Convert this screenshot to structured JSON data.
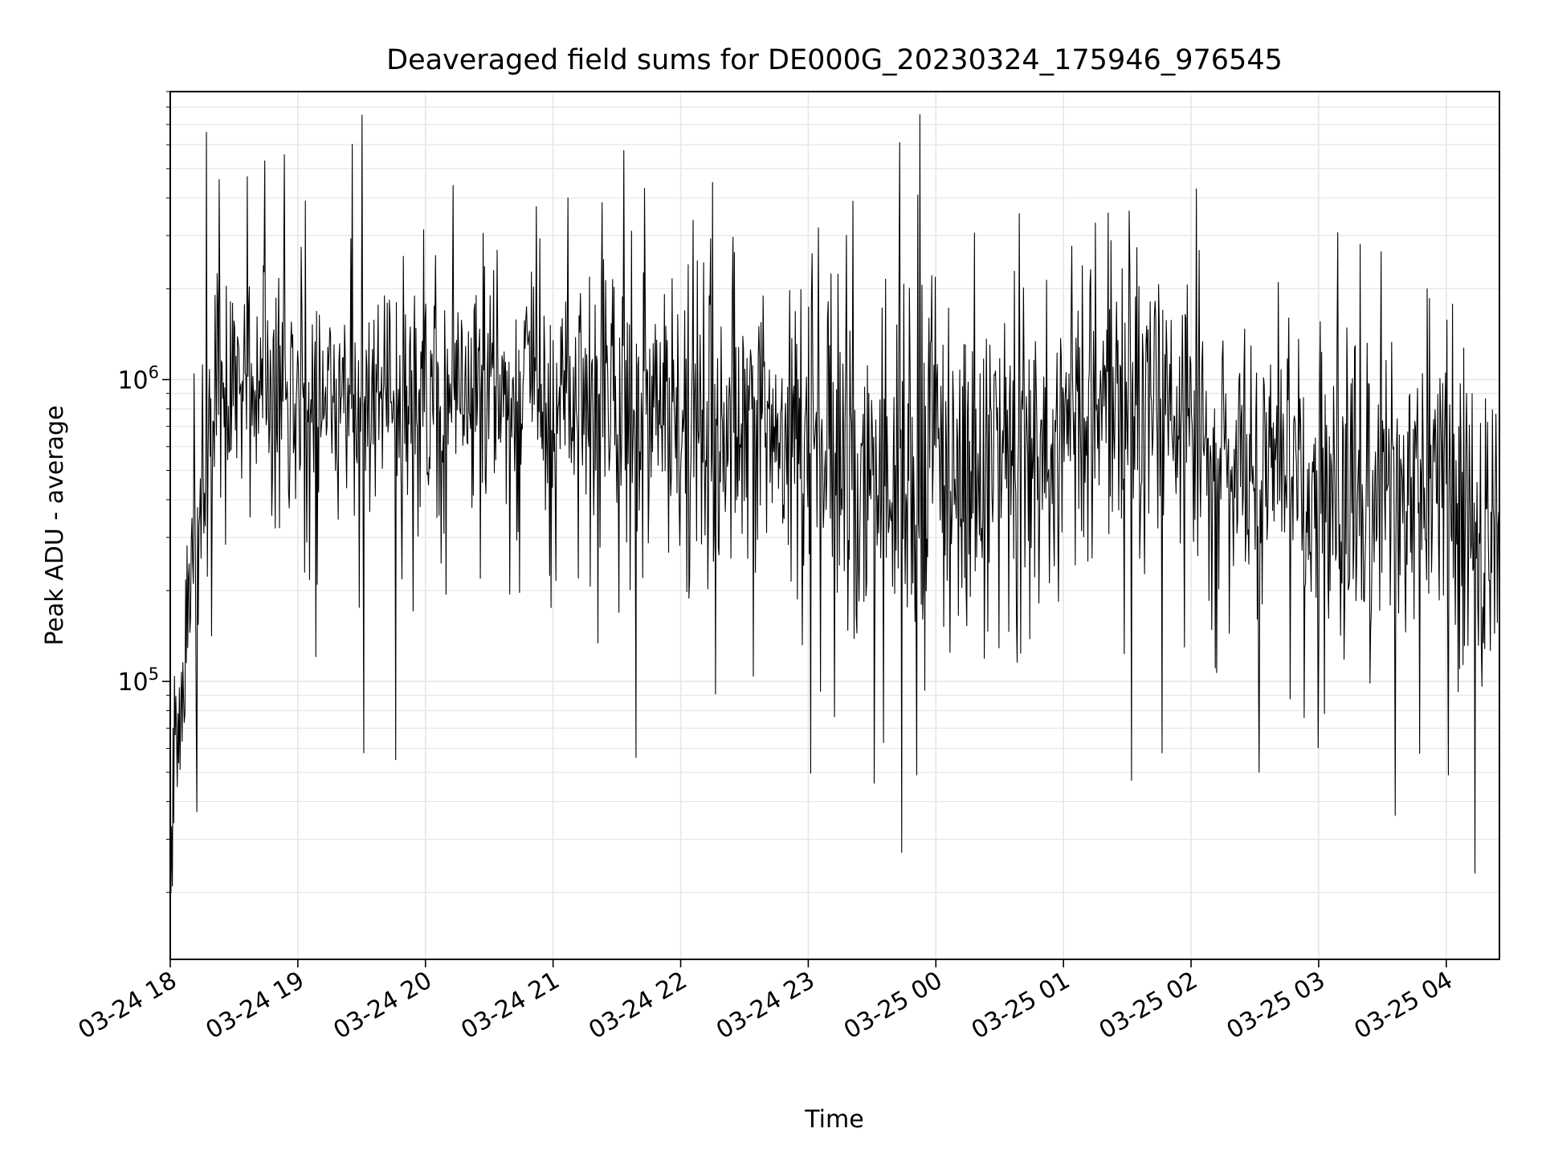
{
  "chart_data": {
    "type": "line",
    "title": "Deaveraged field sums for DE000G_20230324_175946_976545",
    "xlabel": "Time",
    "ylabel": "Peak ADU - average",
    "x_ticks": [
      "03-24 18",
      "03-24 19",
      "03-24 20",
      "03-24 21",
      "03-24 22",
      "03-24 23",
      "03-25 00",
      "03-25 01",
      "03-25 02",
      "03-25 03",
      "03-25 04"
    ],
    "y_ticks": [
      {
        "value": 100000,
        "base": "10",
        "exp": "5"
      },
      {
        "value": 1000000,
        "base": "10",
        "exp": "6"
      }
    ],
    "y_scale": "log",
    "xlim": [
      "2023-03-24 18:00",
      "2023-03-25 04:25"
    ],
    "ylim": [
      12000,
      9000000
    ],
    "grid": true,
    "line_color": "#000000",
    "grid_color": "#e6e6e6",
    "series": [
      {
        "x": [
          "2023-03-24 18:00",
          "2023-03-24 18:06",
          "2023-03-24 18:12",
          "2023-03-24 18:18",
          "2023-03-24 18:24",
          "2023-03-24 18:30",
          "2023-03-24 18:45",
          "2023-03-24 19:00",
          "2023-03-24 19:30",
          "2023-03-24 20:00",
          "2023-03-24 20:30",
          "2023-03-24 21:00",
          "2023-03-24 21:30",
          "2023-03-24 22:00",
          "2023-03-24 22:30",
          "2023-03-24 23:00",
          "2023-03-24 23:30",
          "2023-03-25 00:00",
          "2023-03-25 00:30",
          "2023-03-25 01:00",
          "2023-03-25 01:30",
          "2023-03-25 02:00",
          "2023-03-25 02:30",
          "2023-03-25 03:00",
          "2023-03-25 03:30",
          "2023-03-25 04:00",
          "2023-03-25 04:25"
        ],
        "y": [
          30000,
          120000,
          300000,
          500000,
          800000,
          900000,
          1000000,
          950000,
          900000,
          850000,
          900000,
          950000,
          850000,
          700000,
          650000,
          550000,
          400000,
          600000,
          550000,
          750000,
          850000,
          700000,
          450000,
          450000,
          400000,
          450000,
          250000
        ],
        "spread": [
          0.9,
          1.0,
          1.1,
          1.1,
          1.1,
          1.1,
          1.0,
          1.0,
          1.0,
          1.0,
          1.0,
          1.05,
          1.15,
          1.2,
          1.3,
          1.45,
          1.6,
          1.5,
          1.45,
          1.45,
          1.45,
          1.35,
          1.3,
          1.3,
          1.35,
          1.35,
          1.3
        ]
      }
    ],
    "peaks": [
      {
        "x": "2023-03-24 18:17",
        "y": 6600000
      },
      {
        "x": "2023-03-24 18:23",
        "y": 4600000
      },
      {
        "x": "2023-03-24 20:13",
        "y": 4400000
      },
      {
        "x": "2023-03-24 21:07",
        "y": 4000000
      },
      {
        "x": "2023-03-24 21:43",
        "y": 4300000
      },
      {
        "x": "2023-03-24 22:15",
        "y": 4500000
      },
      {
        "x": "2023-03-24 23:21",
        "y": 3900000
      },
      {
        "x": "2023-03-24 23:43",
        "y": 6100000
      },
      {
        "x": "2023-03-25 01:15",
        "y": 3300000
      },
      {
        "x": "2023-03-25 02:41",
        "y": 2100000
      },
      {
        "x": "2023-03-25 03:51",
        "y": 2000000
      }
    ],
    "troughs": [
      {
        "x": "2023-03-24 18:01",
        "y": 21000
      },
      {
        "x": "2023-03-24 19:31",
        "y": 58000
      },
      {
        "x": "2023-03-24 19:46",
        "y": 55000
      },
      {
        "x": "2023-03-24 21:39",
        "y": 56000
      },
      {
        "x": "2023-03-24 23:31",
        "y": 46000
      },
      {
        "x": "2023-03-24 23:51",
        "y": 49000
      },
      {
        "x": "2023-03-25 01:32",
        "y": 47000
      },
      {
        "x": "2023-03-25 02:32",
        "y": 50000
      },
      {
        "x": "2023-03-25 03:36",
        "y": 36000
      },
      {
        "x": "2023-03-25 04:01",
        "y": 49000
      }
    ]
  }
}
